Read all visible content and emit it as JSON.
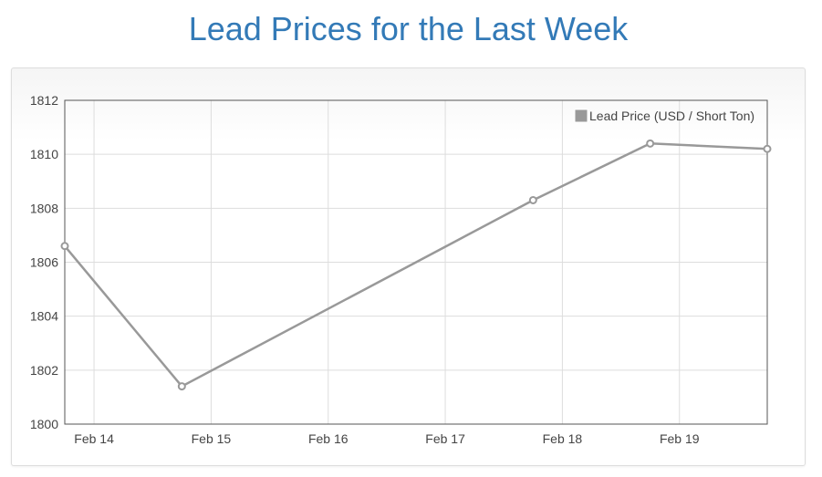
{
  "page": {
    "title": "Lead Prices for the Last Week"
  },
  "colors": {
    "title": "#337ab7",
    "series_line": "#999999",
    "grid": "#dddddd",
    "axis": "#555555"
  },
  "chart_data": {
    "type": "line",
    "title": "",
    "xlabel": "",
    "ylabel": "",
    "x_tick_labels": [
      "Feb 14",
      "Feb 15",
      "Feb 16",
      "Feb 17",
      "Feb 18",
      "Feb 19"
    ],
    "y_tick_labels": [
      "1800",
      "1802",
      "1804",
      "1806",
      "1808",
      "1810",
      "1812"
    ],
    "ylim": [
      1800,
      1812
    ],
    "xlim": [
      "2021-02-13T18:00",
      "2021-02-19T18:00"
    ],
    "grid": true,
    "legend": {
      "position": "top-right",
      "entries": [
        "Lead Price (USD / Short Ton)"
      ]
    },
    "series": [
      {
        "name": "Lead Price (USD / Short Ton)",
        "color": "#999999",
        "points": [
          {
            "x": "2021-02-13T18:00",
            "y": 1806.6
          },
          {
            "x": "2021-02-14T18:00",
            "y": 1801.4
          },
          {
            "x": "2021-02-17T18:00",
            "y": 1808.3
          },
          {
            "x": "2021-02-18T18:00",
            "y": 1810.4
          },
          {
            "x": "2021-02-19T18:00",
            "y": 1810.2
          }
        ]
      }
    ]
  }
}
